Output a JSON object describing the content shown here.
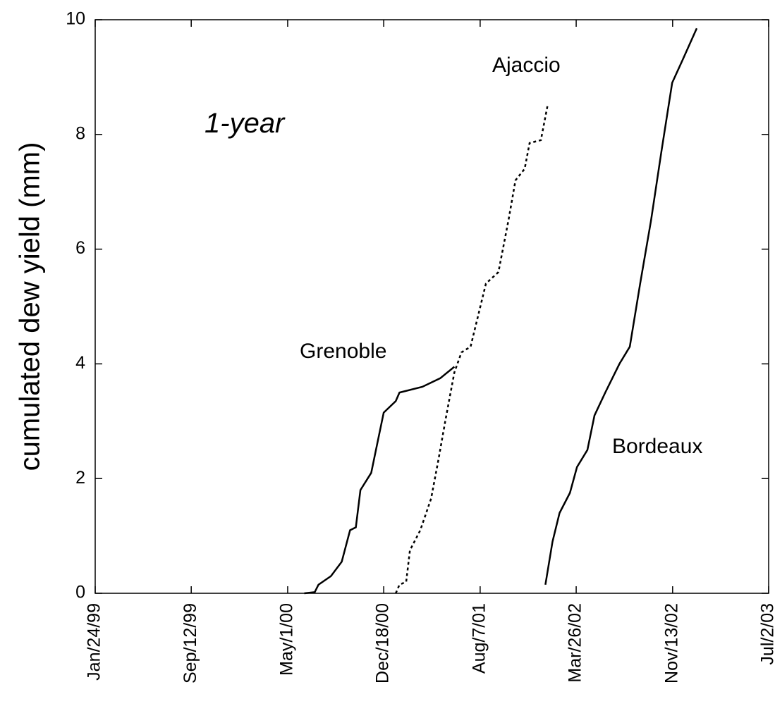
{
  "chart_data": {
    "type": "line",
    "ylabel": "cumulated dew yield (mm)",
    "annotations": [
      "1-year",
      "Ajaccio",
      "Grenoble",
      "Bordeaux"
    ],
    "xlim": [
      "1999-01-24",
      "2003-07-02"
    ],
    "xticks": [
      {
        "value": "1999-01-24",
        "label": "Jan/24/99"
      },
      {
        "value": "1999-09-12",
        "label": "Sep/12/99"
      },
      {
        "value": "2000-05-01",
        "label": "May/1/00"
      },
      {
        "value": "2000-12-18",
        "label": "Dec/18/00"
      },
      {
        "value": "2001-08-07",
        "label": "Aug/7/01"
      },
      {
        "value": "2002-03-26",
        "label": "Mar/26/02"
      },
      {
        "value": "2002-11-13",
        "label": "Nov/13/02"
      },
      {
        "value": "2003-07-02",
        "label": "Jul/2/03"
      }
    ],
    "ylim": [
      0,
      10
    ],
    "yticks": [
      0,
      2,
      4,
      6,
      8,
      10
    ],
    "series": [
      {
        "name": "Grenoble",
        "color": "#000000",
        "style": "solid",
        "x": [
          "2000-06-10",
          "2000-07-05",
          "2000-07-14",
          "2000-08-13",
          "2000-09-08",
          "2000-09-28",
          "2000-10-12",
          "2000-10-23",
          "2000-11-18",
          "2000-12-05",
          "2000-12-18",
          "2001-01-16",
          "2001-01-25",
          "2001-03-21",
          "2001-05-03",
          "2001-06-06"
        ],
        "values": [
          0,
          0.02,
          0.15,
          0.3,
          0.55,
          1.1,
          1.15,
          1.8,
          2.1,
          2.7,
          3.15,
          3.35,
          3.5,
          3.6,
          3.75,
          3.95
        ]
      },
      {
        "name": "Ajaccio",
        "color": "#000000",
        "style": "dotted",
        "x": [
          "2001-01-16",
          "2001-01-25",
          "2001-02-10",
          "2001-02-19",
          "2001-03-16",
          "2001-04-11",
          "2001-04-28",
          "2001-05-15",
          "2001-06-06",
          "2001-06-23",
          "2001-07-15",
          "2001-08-21",
          "2001-09-20",
          "2001-10-14",
          "2001-10-31",
          "2001-11-22",
          "2001-12-04",
          "2001-12-31",
          "2002-01-16"
        ],
        "values": [
          0,
          0.15,
          0.2,
          0.75,
          1.1,
          1.65,
          2.3,
          3.0,
          3.85,
          4.2,
          4.3,
          5.4,
          5.6,
          6.5,
          7.2,
          7.4,
          7.85,
          7.9,
          8.5
        ]
      },
      {
        "name": "Bordeaux",
        "color": "#000000",
        "style": "solid",
        "x": [
          "2002-01-11",
          "2002-01-28",
          "2002-02-14",
          "2002-03-11",
          "2002-03-28",
          "2002-04-22",
          "2002-05-09",
          "2002-06-04",
          "2002-07-08",
          "2002-08-02",
          "2002-08-27",
          "2002-09-22",
          "2002-10-17",
          "2002-11-12",
          "2002-12-07",
          "2003-01-10"
        ],
        "values": [
          0.15,
          0.9,
          1.4,
          1.75,
          2.2,
          2.5,
          3.1,
          3.5,
          4.0,
          4.3,
          5.4,
          6.5,
          7.7,
          8.9,
          9.3,
          9.85
        ]
      }
    ]
  }
}
